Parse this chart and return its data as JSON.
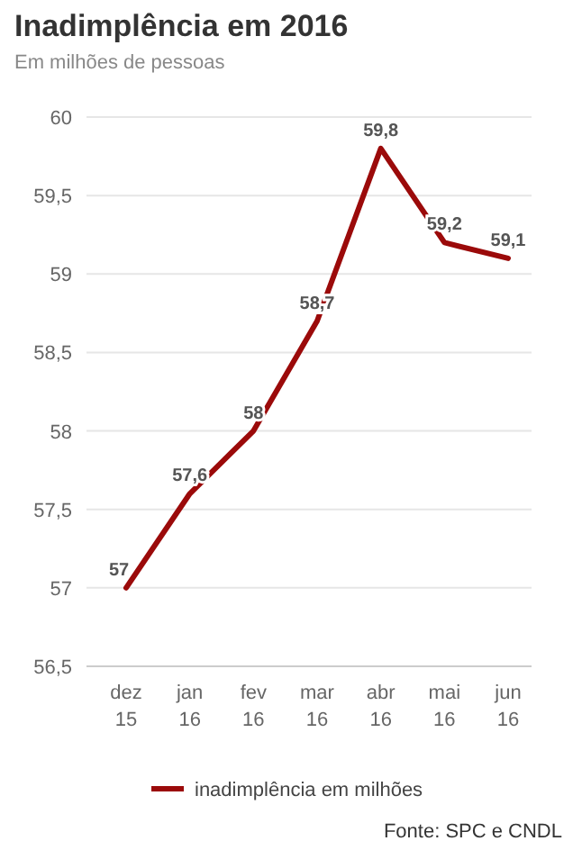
{
  "chart_data": {
    "type": "line",
    "title": "Inadimplência em 2016",
    "subtitle": "Em milhões de pessoas",
    "categories": [
      "dez 15",
      "jan 16",
      "fev 16",
      "mar 16",
      "abr 16",
      "mai 16",
      "jun 16"
    ],
    "series": [
      {
        "name": "inadimplência em milhões",
        "color": "#9b0a0a",
        "values": [
          57,
          57.6,
          58,
          58.7,
          59.8,
          59.2,
          59.1
        ],
        "value_labels": [
          "57",
          "57,6",
          "58",
          "58,7",
          "59,8",
          "59,2",
          "59,1"
        ]
      }
    ],
    "ylim": [
      56.5,
      60
    ],
    "yticks": [
      {
        "value": 56.5,
        "label": "56,5"
      },
      {
        "value": 57,
        "label": "57"
      },
      {
        "value": 57.5,
        "label": "57,5"
      },
      {
        "value": 58,
        "label": "58"
      },
      {
        "value": 58.5,
        "label": "58,5"
      },
      {
        "value": 59,
        "label": "59"
      },
      {
        "value": 59.5,
        "label": "59,5"
      },
      {
        "value": 60,
        "label": "60"
      }
    ],
    "grid": "y",
    "legend": "bottom",
    "marker": "none",
    "line_style": "solid",
    "annotations": [
      "Fonte: SPC e CNDL"
    ]
  }
}
